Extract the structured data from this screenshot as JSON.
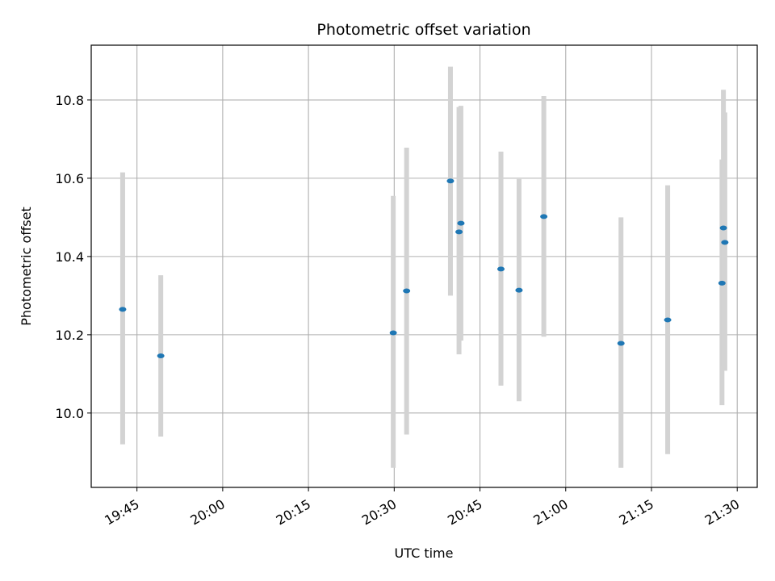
{
  "chart_data": {
    "type": "scatter",
    "title": "Photometric offset variation",
    "xlabel": "UTC time",
    "ylabel": "Photometric offset",
    "x_ticks": [
      "19:45",
      "20:00",
      "20:15",
      "20:30",
      "20:45",
      "21:00",
      "21:15",
      "21:30"
    ],
    "y_ticks": [
      "10.0",
      "10.2",
      "10.4",
      "10.6",
      "10.8"
    ],
    "grid": true,
    "xlim": [
      "19:37:00",
      "21:33:30"
    ],
    "ylim": [
      9.81,
      10.94
    ],
    "colors": {
      "point": "#1f77b4",
      "errorbar": "#d3d3d3",
      "grid": "#b0b0b0"
    },
    "series": [
      {
        "points": [
          {
            "x": "19:42:30",
            "y": 10.265,
            "err_low": 9.92,
            "err_high": 10.615
          },
          {
            "x": "19:49:10",
            "y": 10.146,
            "err_low": 9.94,
            "err_high": 10.352
          },
          {
            "x": "20:29:50",
            "y": 10.205,
            "err_low": 9.86,
            "err_high": 10.555
          },
          {
            "x": "20:32:10",
            "y": 10.312,
            "err_low": 9.945,
            "err_high": 10.678
          },
          {
            "x": "20:39:50",
            "y": 10.593,
            "err_low": 10.3,
            "err_high": 10.885
          },
          {
            "x": "20:41:20",
            "y": 10.463,
            "err_low": 10.15,
            "err_high": 10.782
          },
          {
            "x": "20:41:40",
            "y": 10.485,
            "err_low": 10.185,
            "err_high": 10.785
          },
          {
            "x": "20:48:40",
            "y": 10.368,
            "err_low": 10.07,
            "err_high": 10.668
          },
          {
            "x": "20:51:50",
            "y": 10.314,
            "err_low": 10.03,
            "err_high": 10.598
          },
          {
            "x": "20:56:10",
            "y": 10.502,
            "err_low": 10.195,
            "err_high": 10.81
          },
          {
            "x": "21:09:40",
            "y": 10.178,
            "err_low": 9.86,
            "err_high": 10.5
          },
          {
            "x": "21:17:50",
            "y": 10.238,
            "err_low": 9.895,
            "err_high": 10.582
          },
          {
            "x": "21:27:20",
            "y": 10.332,
            "err_low": 10.02,
            "err_high": 10.648
          },
          {
            "x": "21:27:35",
            "y": 10.473,
            "err_low": 10.12,
            "err_high": 10.826
          },
          {
            "x": "21:27:50",
            "y": 10.436,
            "err_low": 10.108,
            "err_high": 10.768
          }
        ]
      }
    ]
  }
}
